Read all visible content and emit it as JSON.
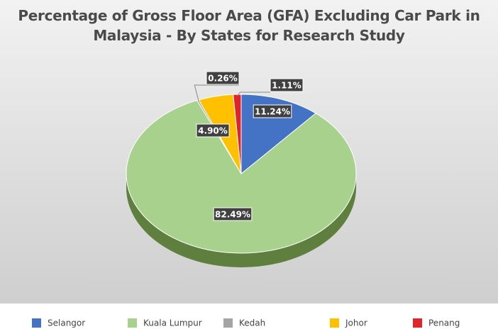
{
  "chart_data": {
    "type": "pie",
    "title": "Percentage of Gross Floor Area (GFA) Excluding Car Park in Malaysia - By States for Research Study",
    "categories": [
      "Selangor",
      "Kuala Lumpur",
      "Kedah",
      "Johor",
      "Penang"
    ],
    "values": [
      11.24,
      82.49,
      0.26,
      4.9,
      1.11
    ],
    "value_labels": [
      "11.24%",
      "82.49%",
      "0.26%",
      "4.90%",
      "1.11%"
    ],
    "colors": [
      "#4472c4",
      "#a9d18e",
      "#a5a5a5",
      "#ffc000",
      "#e3232a"
    ],
    "legend": "bottom"
  }
}
